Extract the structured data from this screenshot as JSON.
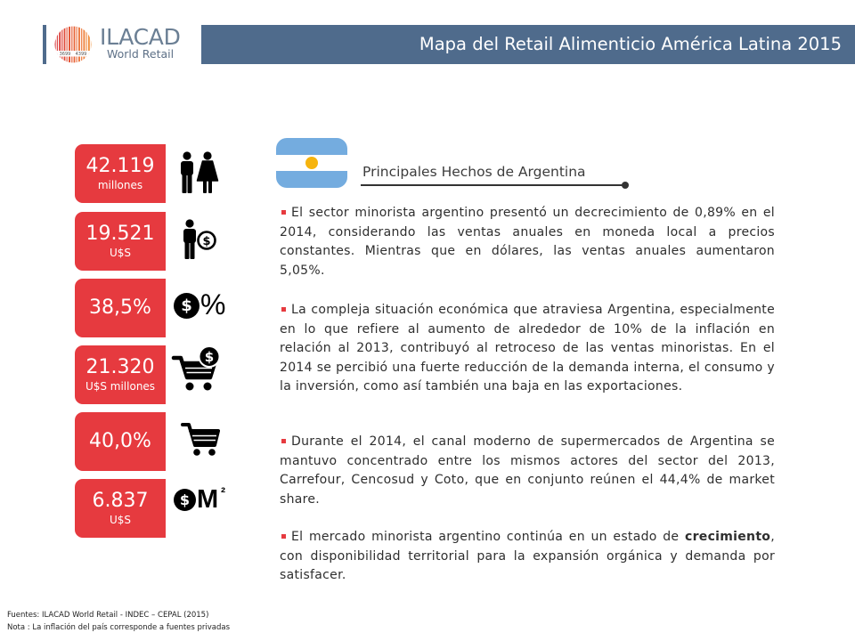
{
  "header": {
    "title": "Mapa del Retail Alimenticio América Latina 2015"
  },
  "logo": {
    "name": "ILACAD",
    "tagline": "World Retail",
    "barcode_left": "3699",
    "barcode_right": "4399"
  },
  "stats": [
    {
      "value": "42.119",
      "unit": "millones",
      "icon": "population-icon"
    },
    {
      "value": "19.521",
      "unit": "U$S",
      "icon": "income-per-capita-icon"
    },
    {
      "value": "38,5%",
      "icon": "dollar-percent-icon"
    },
    {
      "value": "21.320",
      "unit": "U$S millones",
      "icon": "cart-dollar-icon"
    },
    {
      "value": "40,0%",
      "icon": "shopping-cart-icon"
    },
    {
      "value": "6.837",
      "unit": "U$S",
      "icon": "dollar-per-square-meter-icon"
    }
  ],
  "icon_glyphs": {
    "currency": "$",
    "percent": "%",
    "area_unit": "M",
    "area_exponent": "²"
  },
  "section": {
    "title": "Principales Hechos de Argentina",
    "flag": "argentina-flag"
  },
  "bullets": [
    {
      "text": "El sector minorista argentino presentó un decrecimiento de 0,89% en el 2014, considerando las ventas anuales en moneda local a precios constantes. Mientras que en dólares, las ventas anuales aumentaron 5,05%."
    },
    {
      "text": "La compleja situación económica que atraviesa Argentina, especialmente en lo que refiere al aumento de alrededor de 10% de la inflación en relación al 2013, contribuyó al retroceso de las ventas minoristas. En el 2014 se percibió una fuerte reducción de la demanda interna, el consumo y la inversión, como así también una baja en las exportaciones."
    },
    {
      "text": "Durante el 2014, el canal moderno de supermercados de Argentina se mantuvo concentrado entre los mismos actores del sector del 2013, Carrefour, Cencosud y Coto, que en conjunto reúnen el 44,4% de market share."
    },
    {
      "text_before": "El mercado minorista argentino continúa en un estado de ",
      "text_bold": "crecimiento",
      "text_after": ", con disponibilidad territorial para la expansión orgánica y demanda por satisfacer."
    }
  ],
  "footer": {
    "sources": "Fuentes: ILACAD World Retail -  INDEC – CEPAL (2015)",
    "note": "Nota : La inflación del  país corresponde a fuentes privadas"
  },
  "colors": {
    "header_band": "#4f6b8c",
    "stat_box": "#e63a3f",
    "flag_blue": "#74acdf",
    "flag_sun": "#f6b40e",
    "logo_text": "#6b7f94"
  }
}
